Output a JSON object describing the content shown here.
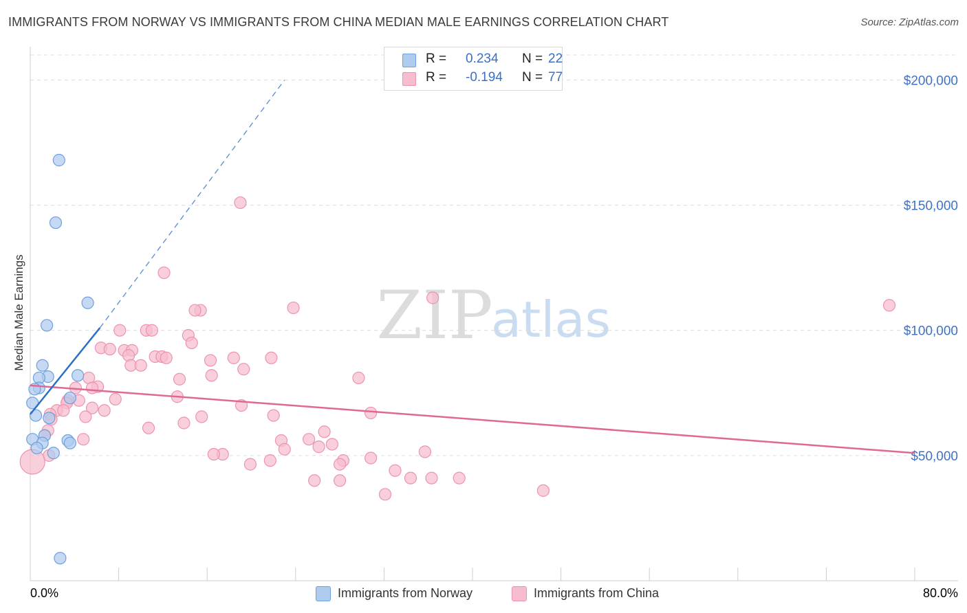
{
  "title": "IMMIGRANTS FROM NORWAY VS IMMIGRANTS FROM CHINA MEDIAN MALE EARNINGS CORRELATION CHART",
  "source": "Source: ZipAtlas.com",
  "watermark": {
    "zip": "ZIP",
    "atlas": "atlas"
  },
  "colors": {
    "norway_fill": "#aecbf0",
    "norway_stroke": "#6f9fdc",
    "norway_line": "#2b6fc8",
    "china_fill": "#f7bccd",
    "china_stroke": "#ec93b0",
    "china_line": "#e06893",
    "tick_label": "#3f72c5",
    "grid": "#dcdcdc"
  },
  "stats": {
    "rows": [
      {
        "name": "norway",
        "r_label": "R =",
        "r_value": "0.234",
        "n_label": "N =",
        "n_value": "22"
      },
      {
        "name": "china",
        "r_label": "R =",
        "r_value": "-0.194",
        "n_label": "N =",
        "n_value": "77"
      }
    ]
  },
  "legend": {
    "norway": "Immigrants from Norway",
    "china": "Immigrants from China"
  },
  "chart_data": {
    "type": "scatter",
    "title": "IMMIGRANTS FROM NORWAY VS IMMIGRANTS FROM CHINA MEDIAN MALE EARNINGS CORRELATION CHART",
    "xlabel": "",
    "ylabel": "Median Male Earnings",
    "xlim": [
      0,
      80
    ],
    "ylim": [
      0,
      210000
    ],
    "x_tick_labels": [
      "0.0%",
      "80.0%"
    ],
    "y_ticks": [
      {
        "value": 50000,
        "label": "$50,000"
      },
      {
        "value": 100000,
        "label": "$100,000"
      },
      {
        "value": 150000,
        "label": "$150,000"
      },
      {
        "value": 200000,
        "label": "$200,000"
      }
    ],
    "series": [
      {
        "name": "Immigrants from Norway",
        "r": 0.234,
        "n": 22,
        "points": [
          [
            2.6,
            168000
          ],
          [
            2.3,
            143000
          ],
          [
            5.2,
            111000
          ],
          [
            1.5,
            102000
          ],
          [
            1.1,
            86000
          ],
          [
            4.3,
            82000
          ],
          [
            1.6,
            81500
          ],
          [
            0.8,
            81000
          ],
          [
            0.8,
            77000
          ],
          [
            0.4,
            76500
          ],
          [
            3.6,
            73000
          ],
          [
            0.2,
            71000
          ],
          [
            0.5,
            66000
          ],
          [
            1.7,
            65000
          ],
          [
            1.3,
            58000
          ],
          [
            3.4,
            56000
          ],
          [
            0.2,
            56500
          ],
          [
            1.1,
            55000
          ],
          [
            3.6,
            55000
          ],
          [
            0.6,
            53000
          ],
          [
            2.1,
            51000
          ],
          [
            2.7,
            9000
          ]
        ],
        "trend": {
          "x0": 0,
          "y0": 66500,
          "x1": 6.3,
          "y1": 101000,
          "dash_x1": 23,
          "dash_y1": 200000
        }
      },
      {
        "name": "Immigrants from China",
        "r": -0.194,
        "n": 77,
        "points": [
          [
            19.0,
            151000
          ],
          [
            12.1,
            123000
          ],
          [
            36.4,
            113000
          ],
          [
            77.7,
            110000
          ],
          [
            23.8,
            109000
          ],
          [
            15.4,
            108000
          ],
          [
            14.9,
            108000
          ],
          [
            8.1,
            100000
          ],
          [
            10.5,
            100000
          ],
          [
            11.0,
            100000
          ],
          [
            14.3,
            98000
          ],
          [
            14.6,
            95000
          ],
          [
            6.4,
            93000
          ],
          [
            7.2,
            92500
          ],
          [
            8.5,
            92000
          ],
          [
            9.2,
            92000
          ],
          [
            8.9,
            90000
          ],
          [
            11.3,
            89500
          ],
          [
            11.9,
            89500
          ],
          [
            12.3,
            89000
          ],
          [
            18.4,
            89000
          ],
          [
            21.8,
            89000
          ],
          [
            16.3,
            88000
          ],
          [
            9.1,
            86000
          ],
          [
            10.0,
            86000
          ],
          [
            19.3,
            84500
          ],
          [
            16.4,
            82000
          ],
          [
            29.7,
            81000
          ],
          [
            5.3,
            81000
          ],
          [
            13.5,
            80500
          ],
          [
            6.1,
            77500
          ],
          [
            4.1,
            77000
          ],
          [
            5.6,
            77000
          ],
          [
            13.3,
            73500
          ],
          [
            4.4,
            72000
          ],
          [
            3.4,
            72000
          ],
          [
            7.7,
            72500
          ],
          [
            3.3,
            71000
          ],
          [
            19.1,
            70000
          ],
          [
            5.6,
            69000
          ],
          [
            2.4,
            68000
          ],
          [
            3.0,
            68000
          ],
          [
            6.7,
            68000
          ],
          [
            30.8,
            67000
          ],
          [
            1.8,
            66500
          ],
          [
            22.0,
            66000
          ],
          [
            5.0,
            65500
          ],
          [
            15.5,
            65500
          ],
          [
            1.9,
            64500
          ],
          [
            13.9,
            63000
          ],
          [
            10.7,
            61000
          ],
          [
            1.6,
            60000
          ],
          [
            26.6,
            59500
          ],
          [
            1.3,
            58000
          ],
          [
            25.2,
            56500
          ],
          [
            4.8,
            56500
          ],
          [
            22.7,
            56000
          ],
          [
            27.3,
            54500
          ],
          [
            26.1,
            53500
          ],
          [
            23.0,
            52500
          ],
          [
            35.7,
            51500
          ],
          [
            1.7,
            50000
          ],
          [
            17.4,
            50500
          ],
          [
            16.6,
            50500
          ],
          [
            30.8,
            49000
          ],
          [
            28.3,
            48000
          ],
          [
            21.7,
            48000
          ],
          [
            28.0,
            46500
          ],
          [
            19.9,
            46500
          ],
          [
            33.0,
            44000
          ],
          [
            34.4,
            41000
          ],
          [
            36.3,
            41000
          ],
          [
            38.8,
            41000
          ],
          [
            28.0,
            40000
          ],
          [
            25.7,
            40000
          ],
          [
            46.4,
            36000
          ],
          [
            32.1,
            34500
          ]
        ],
        "trend": {
          "x0": 0,
          "y0": 78000,
          "x1": 80,
          "y1": 51000
        }
      }
    ]
  }
}
